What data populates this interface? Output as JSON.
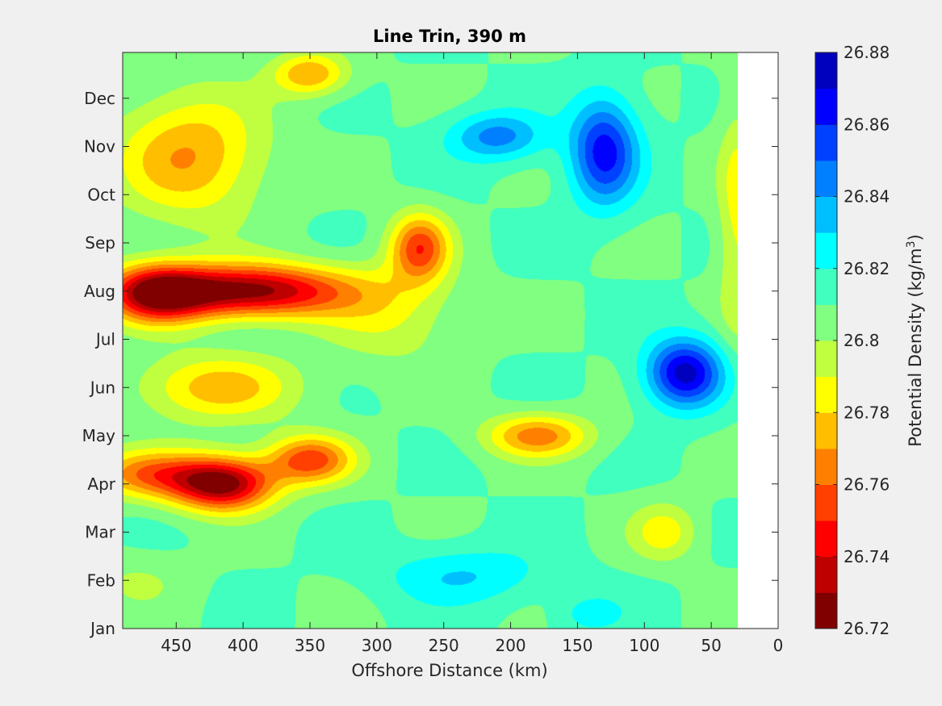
{
  "chart_data": {
    "type": "heatmap",
    "title": "Line Trin, 390 m",
    "xlabel": "Offshore Distance (km)",
    "colorbar_label": "Potential Density (kg/m",
    "colorbar_label_sup": "3",
    "colorbar_label_close": ")",
    "x_axis": {
      "reversed": true,
      "lim": [
        0,
        490
      ],
      "ticks": [
        450,
        400,
        350,
        300,
        250,
        200,
        150,
        100,
        50,
        0
      ],
      "tick_labels": [
        "450",
        "400",
        "350",
        "300",
        "250",
        "200",
        "150",
        "100",
        "50",
        "0"
      ],
      "data_extent": [
        30,
        490
      ]
    },
    "y_axis": {
      "lim": [
        1,
        12.95
      ],
      "ticks": [
        1,
        2,
        3,
        4,
        5,
        6,
        7,
        8,
        9,
        10,
        11,
        12
      ],
      "tick_labels": [
        "Jan",
        "Feb",
        "Mar",
        "Apr",
        "May",
        "Jun",
        "Jul",
        "Aug",
        "Sep",
        "Oct",
        "Nov",
        "Dec"
      ]
    },
    "color_scale": {
      "min": 26.72,
      "max": 26.88,
      "step": 0.01,
      "tick_labels": [
        "26.72",
        "26.74",
        "26.76",
        "26.78",
        "26.8",
        "26.82",
        "26.84",
        "26.86",
        "26.88"
      ],
      "colors": [
        "#800000",
        "#bf0000",
        "#ff0000",
        "#ff4000",
        "#ff8000",
        "#ffbf00",
        "#ffff00",
        "#bfff40",
        "#80ff80",
        "#40ffbf",
        "#00ffff",
        "#00bfff",
        "#0080ff",
        "#0040ff",
        "#0000ff",
        "#0000bf"
      ]
    },
    "base_value": 26.81,
    "features": [
      {
        "x": 395,
        "y": 8.0,
        "amp": -0.085,
        "sx": 75,
        "sy": 0.55
      },
      {
        "x": 465,
        "y": 7.95,
        "amp": -0.07,
        "sx": 38,
        "sy": 0.6
      },
      {
        "x": 415,
        "y": 4.0,
        "amp": -0.085,
        "sx": 38,
        "sy": 0.55
      },
      {
        "x": 350,
        "y": 4.5,
        "amp": -0.055,
        "sx": 32,
        "sy": 0.5
      },
      {
        "x": 470,
        "y": 4.2,
        "amp": -0.045,
        "sx": 45,
        "sy": 0.5
      },
      {
        "x": 268,
        "y": 8.9,
        "amp": -0.055,
        "sx": 22,
        "sy": 0.7
      },
      {
        "x": 180,
        "y": 5.0,
        "amp": -0.045,
        "sx": 38,
        "sy": 0.45
      },
      {
        "x": 440,
        "y": 10.8,
        "amp": -0.04,
        "sx": 55,
        "sy": 1.3
      },
      {
        "x": 350,
        "y": 12.5,
        "amp": -0.04,
        "sx": 28,
        "sy": 0.45
      },
      {
        "x": 420,
        "y": 6.0,
        "amp": -0.035,
        "sx": 60,
        "sy": 0.7
      },
      {
        "x": 70,
        "y": 6.3,
        "amp": 0.065,
        "sx": 28,
        "sy": 0.7
      },
      {
        "x": 130,
        "y": 10.9,
        "amp": 0.055,
        "sx": 25,
        "sy": 1.1
      },
      {
        "x": 210,
        "y": 11.2,
        "amp": 0.035,
        "sx": 35,
        "sy": 0.5
      },
      {
        "x": 235,
        "y": 2.1,
        "amp": 0.02,
        "sx": 60,
        "sy": 0.6
      },
      {
        "x": 140,
        "y": 1.3,
        "amp": 0.015,
        "sx": 25,
        "sy": 0.4
      },
      {
        "x": 85,
        "y": 3.0,
        "amp": -0.025,
        "sx": 25,
        "sy": 0.6
      },
      {
        "x": 30,
        "y": 9.5,
        "amp": -0.025,
        "sx": 15,
        "sy": 2.5
      },
      {
        "x": 290,
        "y": 7.5,
        "amp": -0.02,
        "sx": 50,
        "sy": 1.0
      },
      {
        "x": 480,
        "y": 2.0,
        "amp": -0.01,
        "sx": 40,
        "sy": 0.6
      }
    ]
  }
}
